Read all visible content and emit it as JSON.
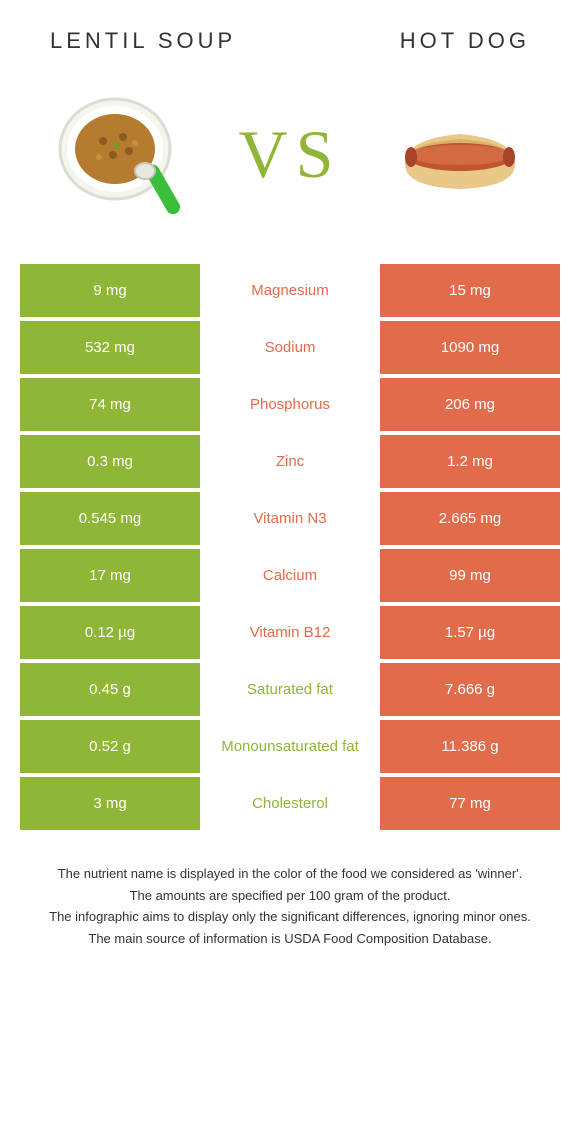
{
  "colors": {
    "left_col": "#8fb636",
    "right_col": "#e16b4a",
    "mid_bg": "#ffffff",
    "text_dark": "#333333",
    "vs_color": "#8fb636"
  },
  "header": {
    "left_title": "LENTIL SOUP",
    "right_title": "HOT DOG",
    "vs_label": "VS"
  },
  "rows": [
    {
      "left": "9 mg",
      "label": "Magnesium",
      "right": "15 mg",
      "winner": "right"
    },
    {
      "left": "532 mg",
      "label": "Sodium",
      "right": "1090 mg",
      "winner": "right"
    },
    {
      "left": "74 mg",
      "label": "Phosphorus",
      "right": "206 mg",
      "winner": "right"
    },
    {
      "left": "0.3 mg",
      "label": "Zinc",
      "right": "1.2 mg",
      "winner": "right"
    },
    {
      "left": "0.545 mg",
      "label": "Vitamin N3",
      "right": "2.665 mg",
      "winner": "right"
    },
    {
      "left": "17 mg",
      "label": "Calcium",
      "right": "99 mg",
      "winner": "right"
    },
    {
      "left": "0.12 µg",
      "label": "Vitamin B12",
      "right": "1.57 µg",
      "winner": "right"
    },
    {
      "left": "0.45 g",
      "label": "Saturated fat",
      "right": "7.666 g",
      "winner": "left"
    },
    {
      "left": "0.52 g",
      "label": "Monounsaturated fat",
      "right": "11.386 g",
      "winner": "left"
    },
    {
      "left": "3 mg",
      "label": "Cholesterol",
      "right": "77 mg",
      "winner": "left"
    }
  ],
  "footnotes": [
    "The nutrient name is displayed in the color of the food we considered as 'winner'.",
    "The amounts are specified per 100 gram of the product.",
    "The infographic aims to display only the significant differences, ignoring minor ones.",
    "The main source of information is USDA Food Composition Database."
  ]
}
